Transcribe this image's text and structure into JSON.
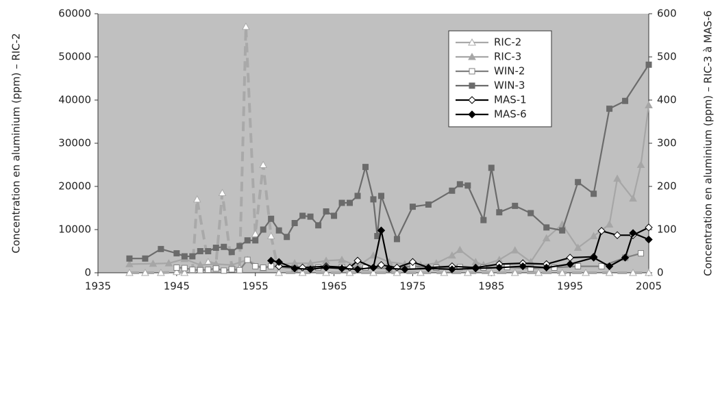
{
  "chart_data": {
    "type": "line",
    "y_label": "Concentration en aluminium (ppm) – RIC-2",
    "y2_label": "Concentration en aluminium (ppm) – RIC-3 à MAS-6",
    "xlim": [
      1935,
      2005
    ],
    "xticks": [
      1935,
      1945,
      1955,
      1965,
      1975,
      1985,
      1995,
      2005
    ],
    "ylim": [
      0,
      60000
    ],
    "yticks": [
      0,
      10000,
      20000,
      30000,
      40000,
      50000,
      60000
    ],
    "y2lim": [
      0,
      600
    ],
    "y2ticks": [
      0,
      100,
      200,
      300,
      400,
      500,
      600
    ],
    "grid": false,
    "legend": "upper right",
    "series": [
      {
        "name": "RIC-2",
        "color": "#a9a9a9",
        "marker": "triangle-open",
        "dashed": true,
        "x": [
          1939,
          1941,
          1943,
          1945,
          1946,
          1947,
          1947.6,
          1949,
          1950,
          1950.8,
          1952,
          1953,
          1953.8,
          1955,
          1956,
          1957,
          1958,
          1961,
          1964,
          1967,
          1970,
          1973,
          1976,
          1979,
          1982,
          1985,
          1988,
          1991,
          1994,
          1997,
          2000,
          2003,
          2005
        ],
        "values": [
          0,
          0,
          0,
          200,
          0,
          500,
          17000,
          2500,
          2000,
          18500,
          1500,
          1000,
          57000,
          9000,
          25000,
          8500,
          0,
          0,
          0,
          0,
          0,
          0,
          0,
          0,
          0,
          0,
          0,
          0,
          0,
          0,
          0,
          0,
          0
        ]
      },
      {
        "name": "RIC-3",
        "color": "#a6a6a6",
        "marker": "triangle",
        "axis": "y2",
        "x": [
          1939,
          1942,
          1944,
          1946,
          1948,
          1950,
          1952,
          1954,
          1956,
          1958,
          1960,
          1962,
          1964,
          1966,
          1968,
          1970,
          1972,
          1974,
          1976,
          1978,
          1980,
          1981,
          1983,
          1984,
          1986,
          1988,
          1990,
          1992,
          1994,
          1996,
          1998,
          2000,
          2001,
          2003,
          2004,
          2005
        ],
        "values": [
          20,
          21,
          22,
          32,
          18,
          20,
          18,
          30,
          10,
          20,
          22,
          22,
          28,
          30,
          15,
          40,
          25,
          20,
          18,
          22,
          40,
          53,
          25,
          18,
          30,
          52,
          25,
          80,
          112,
          58,
          85,
          112,
          218,
          172,
          250,
          388
        ]
      },
      {
        "name": "WIN-2",
        "color": "#7f7f7f",
        "marker": "square-open",
        "x": [
          1945,
          1946,
          1947,
          1948,
          1949,
          1950,
          1951,
          1952,
          1953,
          1954,
          1955,
          1956,
          1957,
          1960,
          1963,
          1966,
          1969,
          1972,
          1975,
          1978,
          1981,
          1984,
          1987,
          1990,
          1993,
          1996,
          1999,
          2002,
          2004
        ],
        "values": [
          1200,
          1100,
          700,
          600,
          700,
          1000,
          500,
          800,
          600,
          3000,
          1500,
          1200,
          1500,
          1000,
          1200,
          1300,
          1200,
          1000,
          1500,
          1200,
          1300,
          1200,
          1300,
          1000,
          1200,
          1500,
          1500,
          3500,
          4500
        ]
      },
      {
        "name": "WIN-3",
        "color": "#6b6b6b",
        "marker": "square",
        "axis": "y2",
        "x": [
          1939,
          1941,
          1943,
          1945,
          1946,
          1947,
          1948,
          1949,
          1950,
          1951,
          1952,
          1953,
          1954,
          1955,
          1956,
          1957,
          1958,
          1959,
          1960,
          1961,
          1962,
          1963,
          1964,
          1965,
          1966,
          1967,
          1968,
          1969,
          1970,
          1970.5,
          1971,
          1973,
          1975,
          1977,
          1980,
          1981,
          1982,
          1984,
          1985,
          1986,
          1988,
          1990,
          1992,
          1994,
          1996,
          1998,
          2000,
          2002,
          2005
        ],
        "values": [
          33,
          33,
          55,
          45,
          38,
          38,
          50,
          50,
          58,
          60,
          48,
          62,
          75,
          75,
          100,
          125,
          98,
          83,
          115,
          132,
          130,
          110,
          142,
          132,
          162,
          162,
          178,
          245,
          170,
          85,
          178,
          78,
          153,
          158,
          190,
          205,
          202,
          122,
          243,
          140,
          155,
          138,
          105,
          98,
          210,
          183,
          380,
          398,
          482
        ]
      },
      {
        "name": "MAS-1",
        "color": "#000000",
        "marker": "diamond-open",
        "axis": "y2",
        "x": [
          1958,
          1961,
          1964,
          1967,
          1968,
          1970,
          1971,
          1973,
          1975,
          1977,
          1980,
          1983,
          1986,
          1989,
          1992,
          1995,
          1998,
          1999,
          2001,
          2003,
          2005
        ],
        "values": [
          15,
          12,
          15,
          12,
          28,
          12,
          18,
          12,
          25,
          12,
          15,
          12,
          20,
          22,
          20,
          35,
          37,
          97,
          87,
          87,
          105
        ]
      },
      {
        "name": "MAS-6",
        "color": "#000000",
        "marker": "diamond",
        "axis": "y2",
        "x": [
          1957,
          1958,
          1960,
          1962,
          1964,
          1966,
          1968,
          1970,
          1971,
          1972,
          1974,
          1977,
          1980,
          1983,
          1986,
          1989,
          1992,
          1995,
          1998,
          2000,
          2002,
          2003,
          2005
        ],
        "values": [
          28,
          25,
          10,
          8,
          12,
          10,
          8,
          12,
          98,
          10,
          8,
          10,
          8,
          10,
          12,
          15,
          12,
          20,
          35,
          15,
          35,
          92,
          77
        ]
      }
    ]
  }
}
